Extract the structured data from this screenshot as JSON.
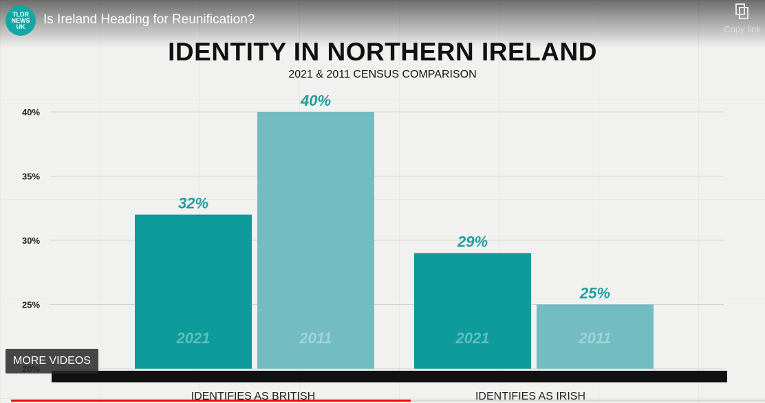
{
  "player": {
    "title": "Is Ireland Heading for Reunification?",
    "channel_logo": [
      "TLDR",
      "NEWS",
      "UK"
    ],
    "copy_link_label": "Copy link",
    "more_videos_label": "MORE VIDEOS",
    "progress": 0.53,
    "accent_color": "#ff0000"
  },
  "chart_data": {
    "type": "bar",
    "title": "IDENTITY IN NORTHERN IRELAND",
    "subtitle": "2021 & 2011 CENSUS COMPARISON",
    "categories": [
      "IDENTIFIES AS BRITISH",
      "IDENTIFIES AS IRISH"
    ],
    "series": [
      {
        "name": "2021",
        "values": [
          32,
          29
        ],
        "labels": [
          "32%",
          "29%"
        ],
        "color": "#0d9b9b"
      },
      {
        "name": "2011",
        "values": [
          40,
          25
        ],
        "labels": [
          "40%",
          "25%"
        ],
        "color": "#72bcc2"
      }
    ],
    "yticks": [
      "20%",
      "25%",
      "30%",
      "35%",
      "40%"
    ],
    "ylim": [
      20,
      40
    ],
    "grid": true,
    "label_color": "#1f9ea0"
  }
}
